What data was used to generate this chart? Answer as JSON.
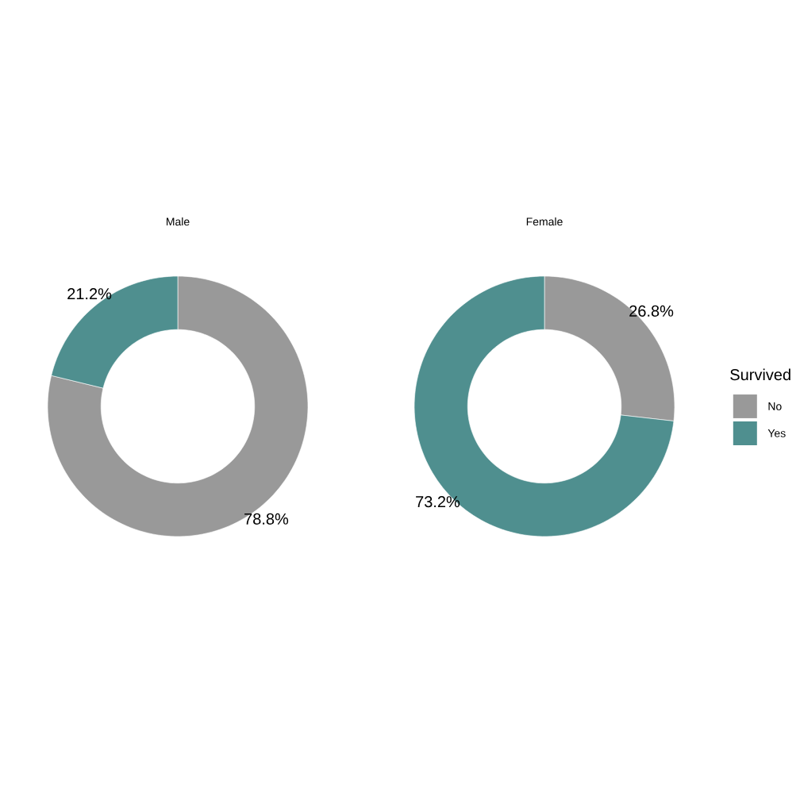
{
  "chart_data": [
    {
      "type": "donut",
      "title": "Male",
      "categories": [
        null,
        null
      ],
      "values": [
        78.8,
        21.2
      ],
      "colors": [
        "#999999",
        "#4f8f8f"
      ],
      "value_labels": [
        "78.8%",
        "21.2%"
      ]
    },
    {
      "type": "donut",
      "title": "Female",
      "categories": [
        "No",
        "Yes"
      ],
      "values": [
        26.8,
        73.2
      ],
      "colors": [
        "#999999",
        "#4f8f8f"
      ],
      "value_labels": [
        "26.8%",
        "73.2%"
      ],
      "legend": "right",
      "legend_title": "Survived"
    }
  ]
}
